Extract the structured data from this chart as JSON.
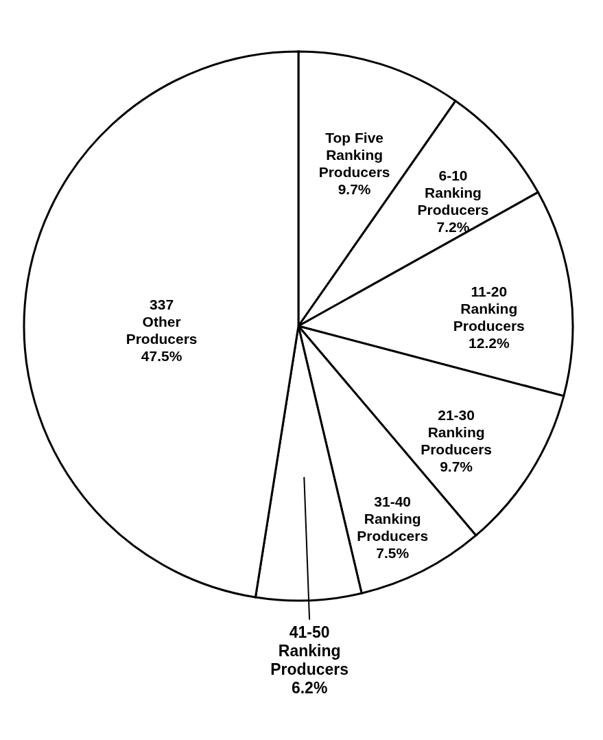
{
  "chart_data": {
    "type": "pie",
    "categories": [
      "Top Five Ranking Producers",
      "6-10 Ranking Producers",
      "11-20 Ranking Producers",
      "21-30 Ranking Producers",
      "31-40 Ranking Producers",
      "41-50 Ranking Producers",
      "337 Other Producers"
    ],
    "values": [
      9.7,
      7.2,
      12.2,
      9.7,
      7.5,
      6.2,
      47.5
    ],
    "value_labels": [
      "9.7%",
      "7.2%",
      "12.2%",
      "9.7%",
      "7.5%",
      "6.2%",
      "47.5%"
    ],
    "colors": [
      "#ffffff",
      "#ffffff",
      "#ffffff",
      "#ffffff",
      "#ffffff",
      "#ffffff",
      "#ffffff"
    ]
  }
}
